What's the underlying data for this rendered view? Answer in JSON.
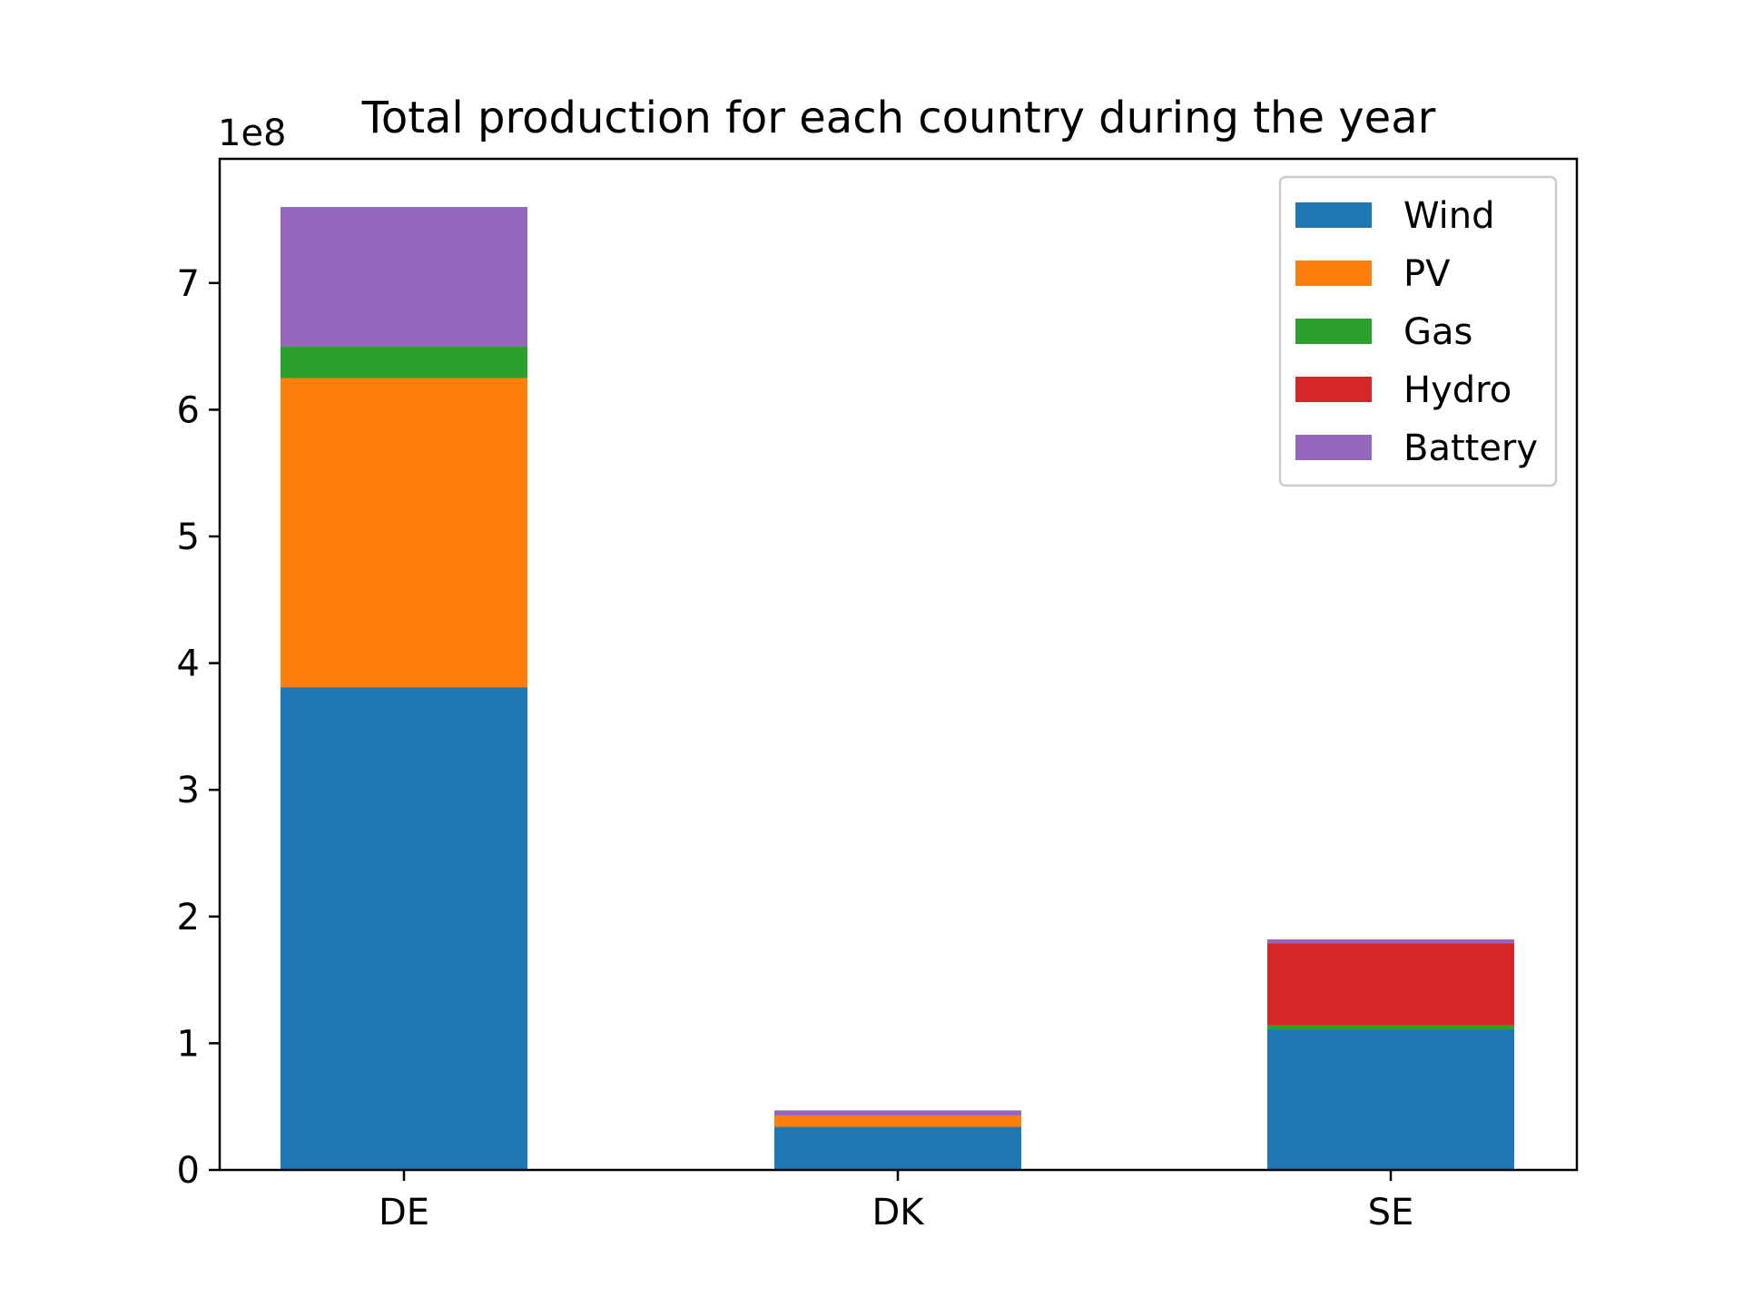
{
  "chart_data": {
    "type": "bar",
    "stacked": true,
    "title": "Total production for each country during the year",
    "xlabel": "",
    "ylabel": "",
    "y_offset_label": "1e8",
    "y_multiplier": 100000000,
    "categories": [
      "DE",
      "DK",
      "SE"
    ],
    "ylim": [
      0,
      7.98
    ],
    "yticks": [
      0,
      1,
      2,
      3,
      4,
      5,
      6,
      7
    ],
    "grid": false,
    "legend_position": "upper right",
    "series": [
      {
        "name": "Wind",
        "color": "#1f77b4",
        "values": [
          3.81,
          0.34,
          1.11
        ]
      },
      {
        "name": "PV",
        "color": "#ff7f0e",
        "values": [
          2.44,
          0.09,
          0.0
        ]
      },
      {
        "name": "Gas",
        "color": "#2ca02c",
        "values": [
          0.25,
          0.0,
          0.03
        ]
      },
      {
        "name": "Hydro",
        "color": "#d62728",
        "values": [
          0.0,
          0.0,
          0.65
        ]
      },
      {
        "name": "Battery",
        "color": "#9467bd",
        "values": [
          1.1,
          0.04,
          0.03
        ]
      }
    ]
  }
}
